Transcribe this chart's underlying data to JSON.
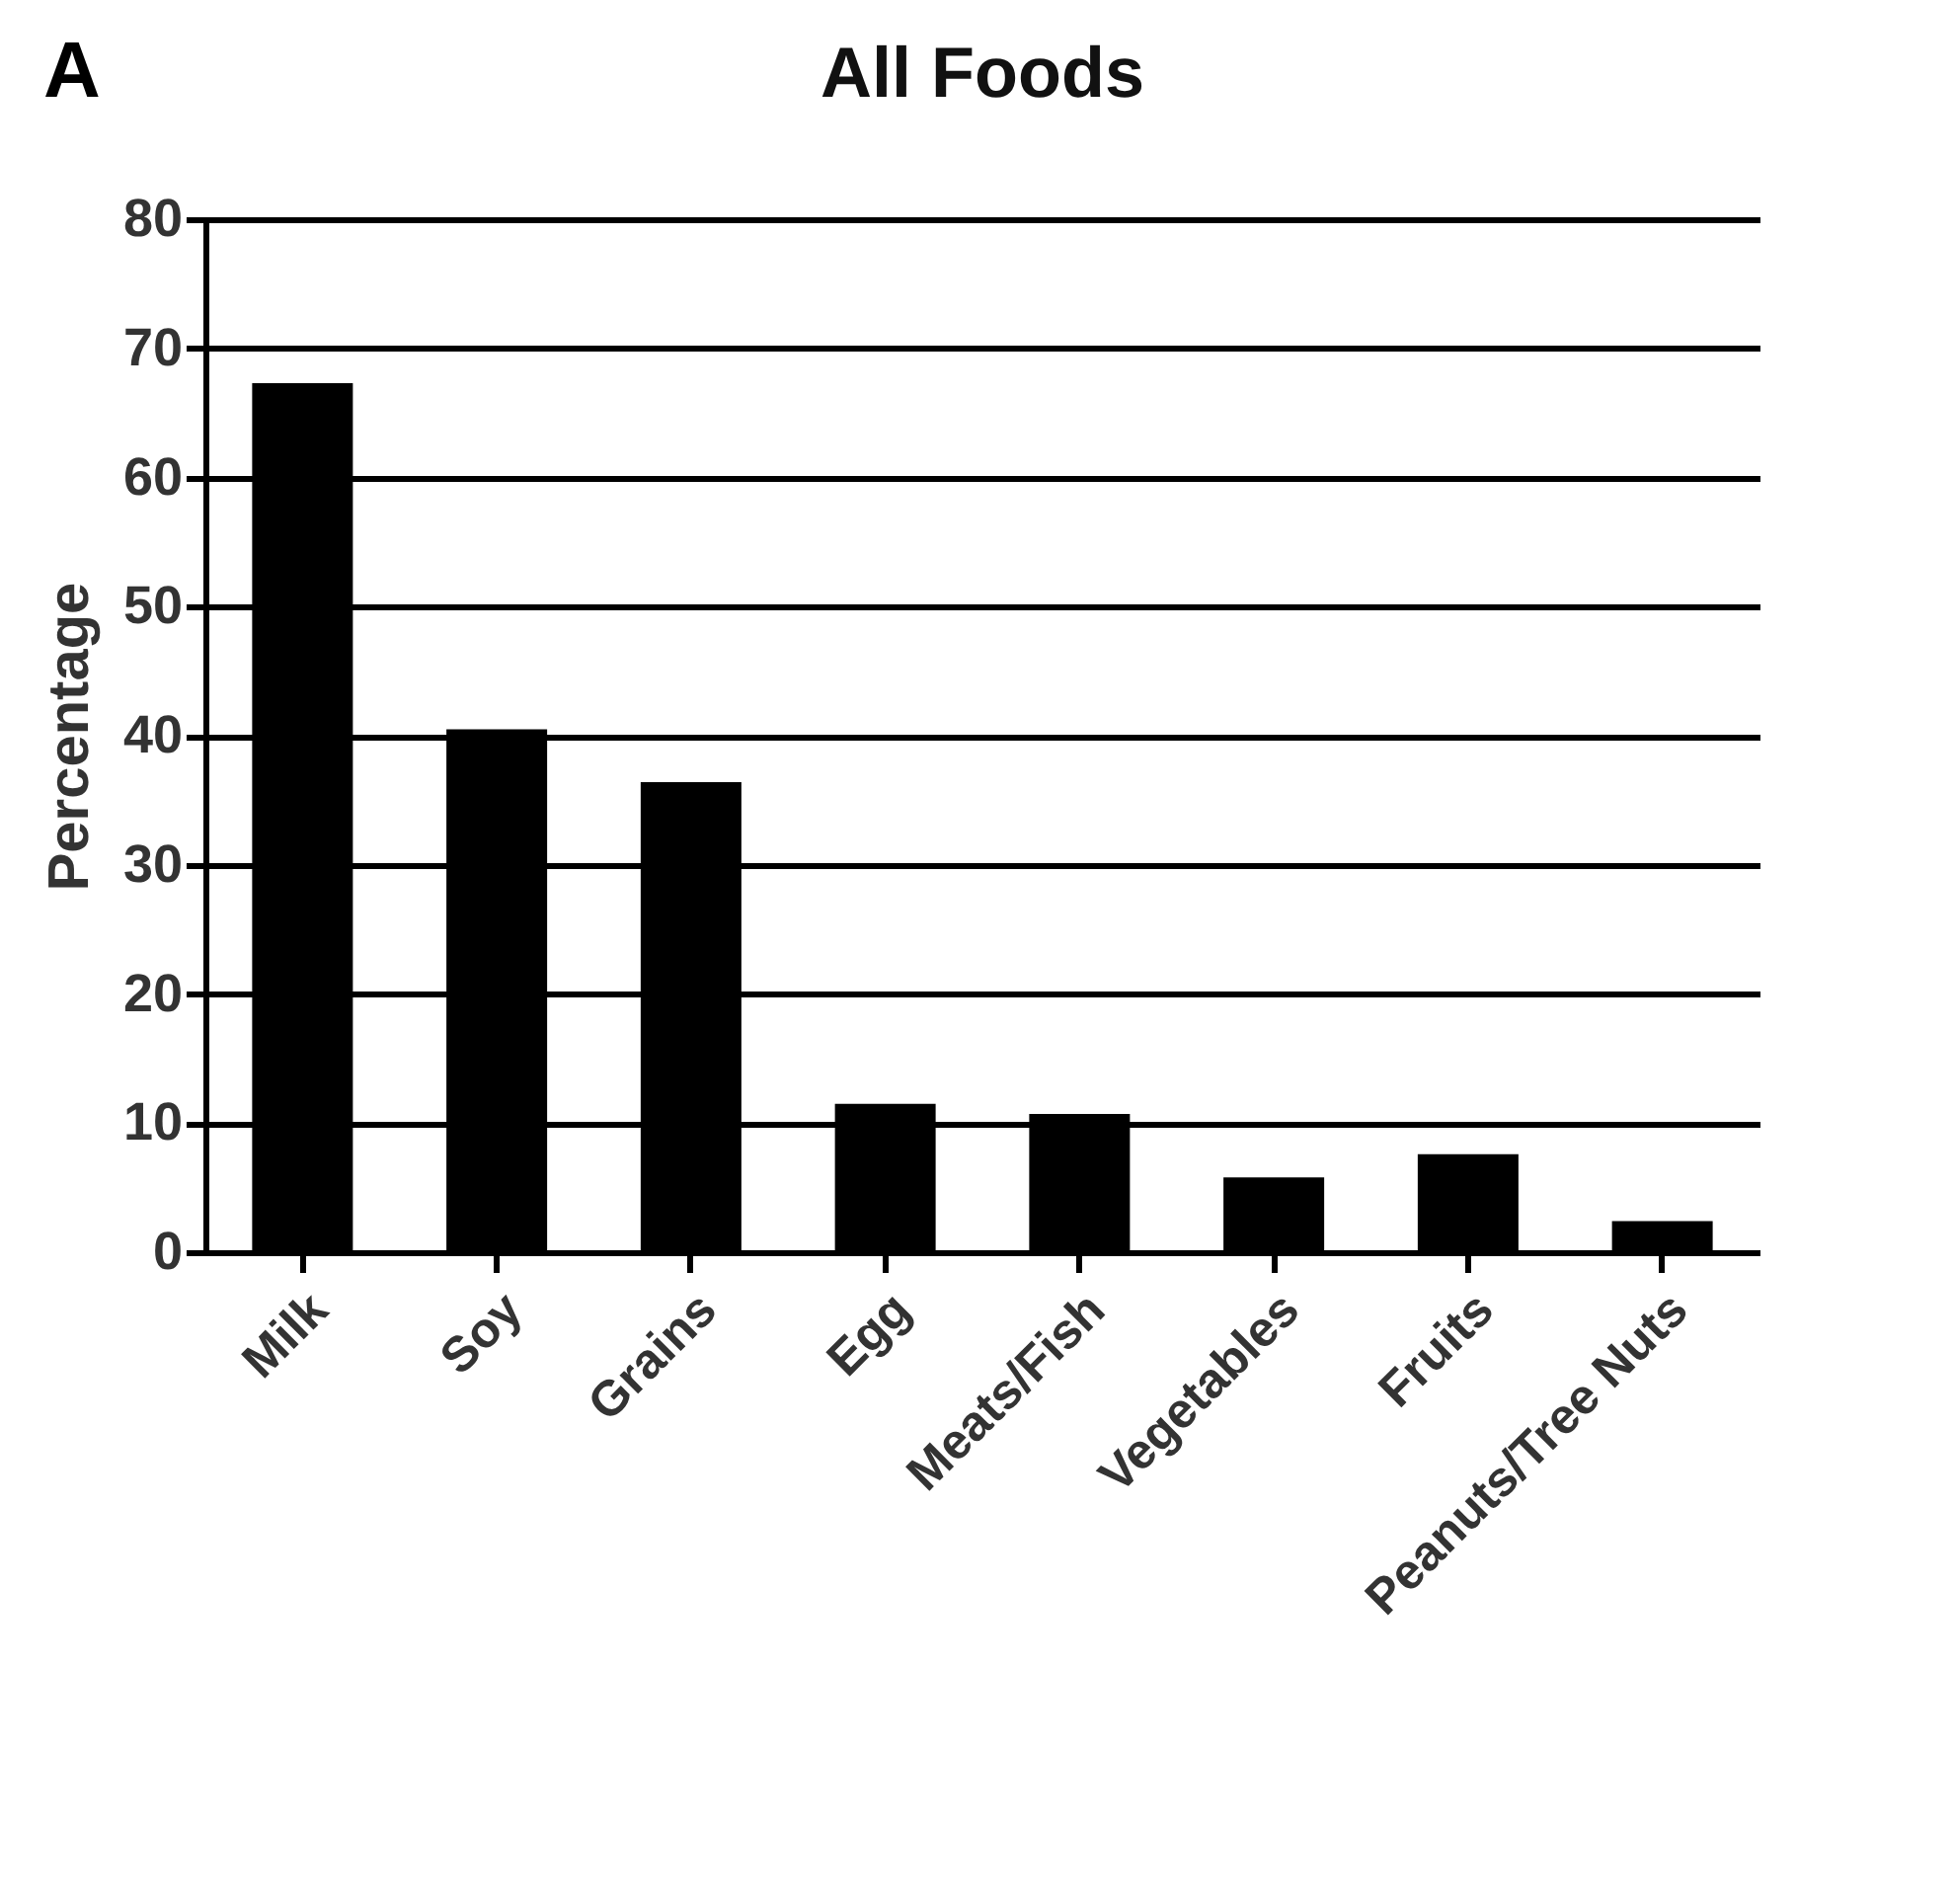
{
  "chart_data": {
    "type": "bar",
    "title": "All Foods",
    "ylabel": "Percentage",
    "annotations": [
      "A"
    ],
    "categories": [
      "Milk",
      "Soy",
      "Grains",
      "Egg",
      "Meats/Fish",
      "Vegetables",
      "Fruits",
      "Peanuts/Tree Nuts"
    ],
    "values": [
      67.3,
      40.5,
      36.4,
      11.5,
      10.7,
      5.8,
      7.6,
      2.4
    ],
    "color": "#000000",
    "ylim": [
      0,
      80
    ],
    "yticks": [
      0,
      10,
      20,
      30,
      40,
      50,
      60,
      70,
      80
    ],
    "grid": "y"
  }
}
